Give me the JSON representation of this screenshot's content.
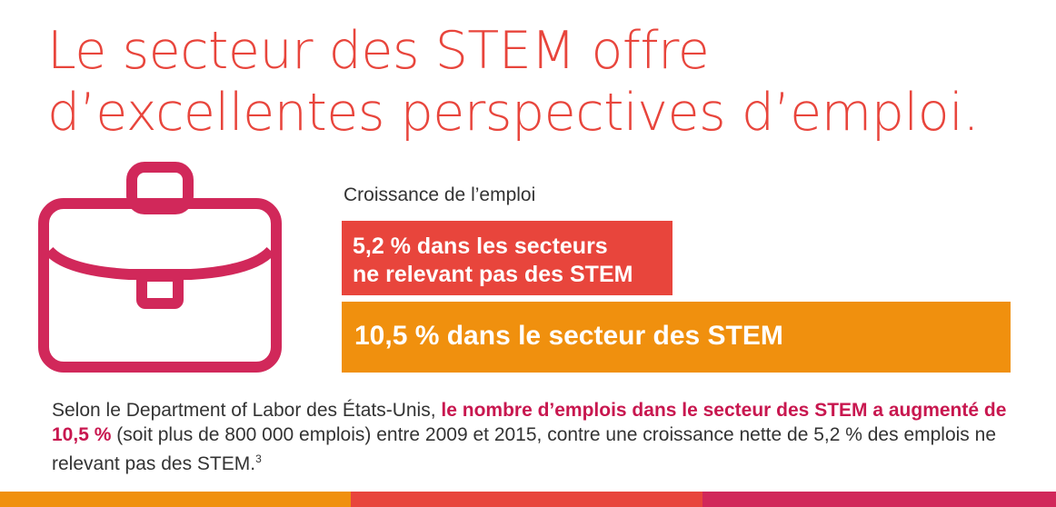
{
  "header": {
    "title_line1": "Le secteur des STEM offre",
    "title_line2": "d’excellentes perspectives d’emploi."
  },
  "chart_data": {
    "type": "bar",
    "title": "Croissance de l’emploi",
    "categories": [
      "ne relevant pas des STEM",
      "secteur des STEM"
    ],
    "values": [
      5.2,
      10.5
    ],
    "unit": "%",
    "orientation": "horizontal",
    "xlim": [
      0,
      10.5
    ],
    "bar_colors": [
      "#e8453c",
      "#f0900e"
    ],
    "labels": [
      {
        "line1": "5,2 % dans les secteurs",
        "line2": "ne relevant pas des STEM"
      },
      {
        "line1": "10,5 % dans le secteur des STEM"
      }
    ]
  },
  "body": {
    "text_1": "Selon le Department of Labor des États-Unis, ",
    "highlight": "le nombre d’emplois dans le secteur des STEM a augmenté de 10,5 %",
    "text_2": " (soit plus de 800 000 emplois) entre 2009 et 2015, contre une croissance nette de 5,2 % des emplois ne relevant pas des STEM.",
    "footnote": "3"
  },
  "icons": {
    "main": "briefcase-icon"
  },
  "colors": {
    "title": "#e8453c",
    "icon": "#d1285a",
    "highlight": "#c8174f",
    "bar_nonstem": "#e8453c",
    "bar_stem": "#f0900e",
    "footer": [
      "#f0900e",
      "#e8453c",
      "#d1285a"
    ]
  }
}
